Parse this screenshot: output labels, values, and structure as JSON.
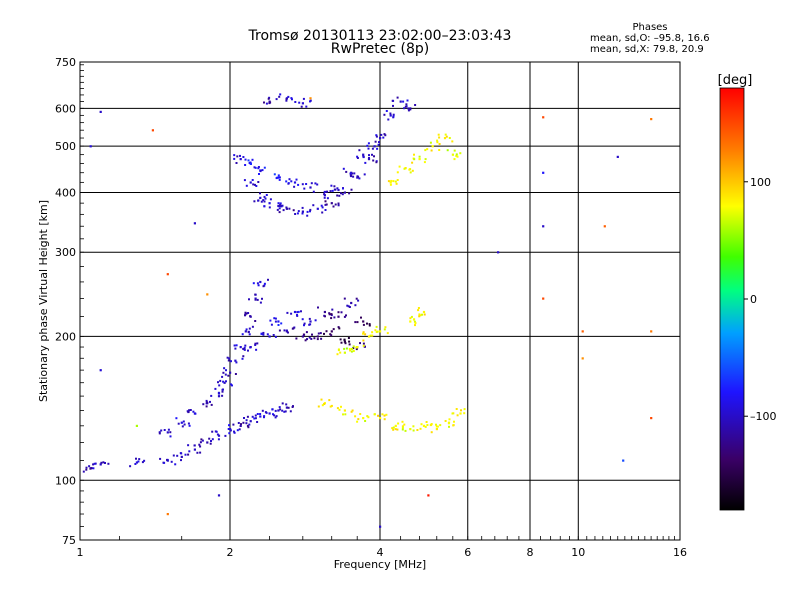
{
  "chart_data": {
    "type": "scatter",
    "title": "Tromsø 20130113 23:02:00–23:03:43",
    "subtitle": "RwPretec (8p)",
    "xlabel": "Frequency [MHz]",
    "ylabel": "Stationary phase Virtual Height [km]",
    "x_scale": "log",
    "y_scale": "log",
    "xlim": [
      1,
      16
    ],
    "ylim": [
      75,
      750
    ],
    "x_ticks": [
      1,
      2,
      4,
      6,
      8,
      10,
      16
    ],
    "x_tick_labels": [
      "1",
      "2",
      "4",
      "6",
      "8",
      "10",
      "16"
    ],
    "y_ticks": [
      75,
      100,
      200,
      300,
      400,
      500,
      600,
      750
    ],
    "y_tick_labels": [
      "75",
      "100",
      "200",
      "300",
      "400",
      "500",
      "600",
      "750"
    ],
    "grid": true,
    "stats": {
      "heading": "Phases",
      "line1": "mean, sd,O: –95.8, 16.6",
      "line2": "mean, sd,X:  79.8, 20.9"
    },
    "colorbar": {
      "label": "[deg]",
      "range": [
        -180,
        180
      ],
      "ticks": [
        100,
        0,
        -100
      ],
      "tick_labels": [
        "100",
        "0",
        "–100"
      ]
    },
    "series": [
      {
        "description": "low E/F1 trace",
        "points": [
          [
            1.05,
            106,
            -110
          ],
          [
            1.1,
            108,
            -100
          ],
          [
            1.3,
            109,
            -95
          ],
          [
            1.5,
            110,
            -100
          ],
          [
            1.6,
            112,
            -105
          ],
          [
            1.7,
            116,
            -100
          ],
          [
            1.8,
            120,
            -110
          ],
          [
            1.9,
            124,
            -100
          ],
          [
            2.0,
            128,
            -95
          ],
          [
            2.1,
            130,
            -110
          ],
          [
            2.2,
            133,
            -100
          ],
          [
            2.3,
            136,
            -90
          ],
          [
            2.4,
            138,
            -95
          ],
          [
            2.5,
            140,
            -100
          ],
          [
            2.6,
            142,
            -105
          ],
          [
            1.5,
            126,
            -100
          ],
          [
            1.6,
            132,
            -90
          ],
          [
            1.7,
            138,
            -100
          ],
          [
            1.8,
            145,
            -110
          ],
          [
            1.9,
            152,
            -95
          ],
          [
            1.95,
            160,
            -100
          ],
          [
            2.0,
            168,
            -105
          ],
          [
            2.05,
            178,
            -100
          ],
          [
            2.1,
            190,
            -95
          ],
          [
            2.15,
            205,
            -100
          ],
          [
            2.2,
            220,
            -110
          ],
          [
            2.25,
            240,
            -100
          ],
          [
            2.3,
            260,
            -95
          ]
        ]
      },
      {
        "description": "mid F1 cluster",
        "points": [
          [
            2.2,
            190,
            -100
          ],
          [
            2.4,
            200,
            -95
          ],
          [
            2.6,
            205,
            -110
          ],
          [
            2.8,
            200,
            -120
          ],
          [
            3.0,
            200,
            -130
          ],
          [
            3.2,
            205,
            -140
          ],
          [
            3.4,
            195,
            -150
          ],
          [
            3.6,
            190,
            -135
          ],
          [
            2.5,
            215,
            -85
          ],
          [
            2.7,
            225,
            -90
          ],
          [
            2.9,
            215,
            -100
          ],
          [
            3.1,
            225,
            -120
          ],
          [
            3.3,
            220,
            -130
          ],
          [
            3.5,
            235,
            -110
          ],
          [
            3.7,
            215,
            -140
          ]
        ]
      },
      {
        "description": "F2 trace",
        "points": [
          [
            2.1,
            470,
            -100
          ],
          [
            2.2,
            420,
            -95
          ],
          [
            2.3,
            390,
            -100
          ],
          [
            2.4,
            380,
            -90
          ],
          [
            2.5,
            375,
            -100
          ],
          [
            2.6,
            370,
            -110
          ],
          [
            2.8,
            365,
            -100
          ],
          [
            3.0,
            370,
            -95
          ],
          [
            3.2,
            380,
            -120
          ],
          [
            3.4,
            400,
            -110
          ],
          [
            3.6,
            430,
            -100
          ],
          [
            3.8,
            470,
            -105
          ],
          [
            4.0,
            520,
            -100
          ],
          [
            4.2,
            580,
            -95
          ],
          [
            4.4,
            620,
            -100
          ],
          [
            4.6,
            600,
            -105
          ],
          [
            2.2,
            460,
            -80
          ],
          [
            2.3,
            445,
            -85
          ],
          [
            2.5,
            430,
            -75
          ],
          [
            2.7,
            420,
            -90
          ],
          [
            2.9,
            410,
            -100
          ],
          [
            3.1,
            395,
            -95
          ],
          [
            3.3,
            405,
            -100
          ],
          [
            3.5,
            440,
            -105
          ],
          [
            3.7,
            480,
            -100
          ],
          [
            3.9,
            500,
            -95
          ],
          [
            2.4,
            620,
            -110
          ],
          [
            2.6,
            630,
            -100
          ],
          [
            2.8,
            615,
            -95
          ]
        ]
      },
      {
        "description": "extraordinary traces",
        "points": [
          [
            3.1,
            145,
            80
          ],
          [
            3.4,
            140,
            85
          ],
          [
            3.7,
            135,
            78
          ],
          [
            4.0,
            135,
            82
          ],
          [
            4.3,
            130,
            80
          ],
          [
            4.6,
            128,
            75
          ],
          [
            4.9,
            130,
            80
          ],
          [
            5.2,
            128,
            85
          ],
          [
            5.5,
            132,
            78
          ],
          [
            5.8,
            138,
            80
          ],
          [
            3.4,
            185,
            70
          ],
          [
            3.6,
            190,
            80
          ],
          [
            3.8,
            200,
            85
          ],
          [
            4.0,
            205,
            78
          ],
          [
            4.6,
            215,
            80
          ],
          [
            4.9,
            225,
            82
          ],
          [
            4.2,
            420,
            80
          ],
          [
            4.5,
            450,
            85
          ],
          [
            4.8,
            470,
            78
          ],
          [
            5.1,
            500,
            80
          ],
          [
            5.4,
            520,
            85
          ],
          [
            5.6,
            480,
            75
          ]
        ]
      },
      {
        "description": "scattered points",
        "points": [
          [
            1.1,
            590,
            -100
          ],
          [
            1.4,
            540,
            150
          ],
          [
            1.05,
            500,
            -95
          ],
          [
            1.7,
            345,
            -100
          ],
          [
            1.5,
            270,
            150
          ],
          [
            1.8,
            245,
            120
          ],
          [
            1.1,
            170,
            -95
          ],
          [
            1.3,
            130,
            60
          ],
          [
            1.9,
            150,
            -100
          ],
          [
            1.9,
            93,
            -100
          ],
          [
            1.5,
            85,
            130
          ],
          [
            2.9,
            630,
            120
          ],
          [
            5.0,
            93,
            170
          ],
          [
            6.9,
            300,
            -100
          ],
          [
            8.5,
            575,
            150
          ],
          [
            8.5,
            440,
            -80
          ],
          [
            8.5,
            340,
            -100
          ],
          [
            8.5,
            240,
            150
          ],
          [
            10.2,
            205,
            140
          ],
          [
            10.2,
            180,
            120
          ],
          [
            11.3,
            340,
            140
          ],
          [
            12.0,
            475,
            -100
          ],
          [
            12.3,
            110,
            -60
          ],
          [
            14.0,
            570,
            130
          ],
          [
            14.0,
            205,
            130
          ],
          [
            14.0,
            135,
            150
          ],
          [
            4.0,
            80,
            -100
          ]
        ]
      }
    ]
  }
}
